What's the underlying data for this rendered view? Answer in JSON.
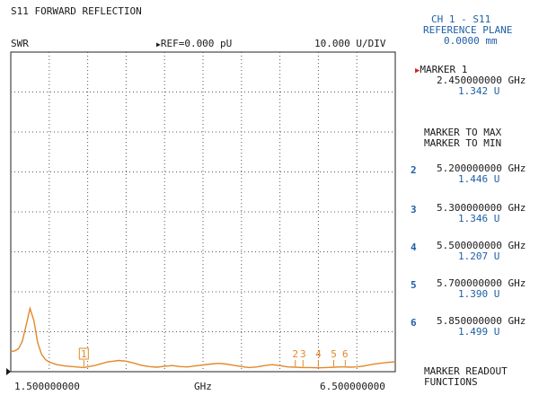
{
  "title": "S11 FORWARD REFLECTION",
  "header": {
    "format": "SWR",
    "ref": "REF=0.000 pU",
    "scale": "10.000 U/DIV"
  },
  "axis": {
    "start": "1.500000000",
    "unit": "GHz",
    "stop": "6.500000000"
  },
  "panel": {
    "channel": "CH 1 - S11",
    "ref_plane_label": "REFERENCE PLANE",
    "ref_plane_value": "0.0000 mm",
    "active_marker": {
      "label": "MARKER 1",
      "freq": "2.450000000 GHz",
      "value": "1.342 U"
    },
    "marker_to_max": "MARKER TO MAX",
    "marker_to_min": "MARKER TO MIN",
    "markers": [
      {
        "num": "2",
        "freq": "5.200000000 GHz",
        "value": "1.446 U"
      },
      {
        "num": "3",
        "freq": "5.300000000 GHz",
        "value": "1.346 U"
      },
      {
        "num": "4",
        "freq": "5.500000000 GHz",
        "value": "1.207 U"
      },
      {
        "num": "5",
        "freq": "5.700000000 GHz",
        "value": "1.390 U"
      },
      {
        "num": "6",
        "freq": "5.850000000 GHz",
        "value": "1.499 U"
      }
    ],
    "readout_line1": "MARKER READOUT",
    "readout_line2": "FUNCTIONS"
  },
  "trace_markers": [
    "1",
    "2",
    "3",
    "4",
    "5",
    "6"
  ],
  "colors": {
    "trace": "#e2882a",
    "panel_text": "#1f5fa6",
    "active_arrow": "#d8231a",
    "grid": "#555555"
  },
  "chart_data": {
    "type": "line",
    "title": "S11 FORWARD REFLECTION",
    "xlabel": "GHz",
    "ylabel": "SWR",
    "xlim": [
      1.5,
      6.5
    ],
    "ylim": [
      0,
      100
    ],
    "grid": true,
    "series": [
      {
        "x": [
          1.5,
          1.55,
          1.6,
          1.65,
          1.7,
          1.75,
          1.8,
          1.85,
          1.9,
          1.95,
          2.0,
          2.1,
          2.2,
          2.3,
          2.45,
          2.6,
          2.75,
          2.9,
          3.0,
          3.1,
          3.2,
          3.3,
          3.4,
          3.5,
          3.6,
          3.7,
          3.8,
          3.9,
          4.0,
          4.1,
          4.2,
          4.3,
          4.4,
          4.5,
          4.6,
          4.7,
          4.8,
          4.9,
          5.0,
          5.1,
          5.2,
          5.3,
          5.4,
          5.5,
          5.6,
          5.7,
          5.8,
          5.85,
          5.9,
          6.0,
          6.1,
          6.2,
          6.3,
          6.4,
          6.5
        ],
        "y": [
          6.3,
          6.5,
          7.2,
          9.5,
          14.5,
          19.8,
          16.0,
          9.0,
          5.5,
          3.8,
          3.0,
          2.2,
          1.8,
          1.6,
          1.3,
          2.0,
          3.0,
          3.5,
          3.3,
          2.7,
          2.0,
          1.6,
          1.4,
          1.7,
          1.9,
          1.6,
          1.5,
          1.8,
          2.1,
          2.4,
          2.6,
          2.4,
          2.0,
          1.6,
          1.3,
          1.5,
          1.9,
          2.2,
          1.9,
          1.5,
          1.4,
          1.3,
          1.3,
          1.2,
          1.3,
          1.4,
          1.5,
          1.5,
          1.4,
          1.5,
          1.8,
          2.3,
          2.6,
          2.9,
          3.1
        ]
      }
    ],
    "markers": [
      {
        "label": "1",
        "x": 2.45,
        "y": 1.342
      },
      {
        "label": "2",
        "x": 5.2,
        "y": 1.446
      },
      {
        "label": "3",
        "x": 5.3,
        "y": 1.346
      },
      {
        "label": "4",
        "x": 5.5,
        "y": 1.207
      },
      {
        "label": "5",
        "x": 5.7,
        "y": 1.39
      },
      {
        "label": "6",
        "x": 5.85,
        "y": 1.499
      }
    ]
  }
}
